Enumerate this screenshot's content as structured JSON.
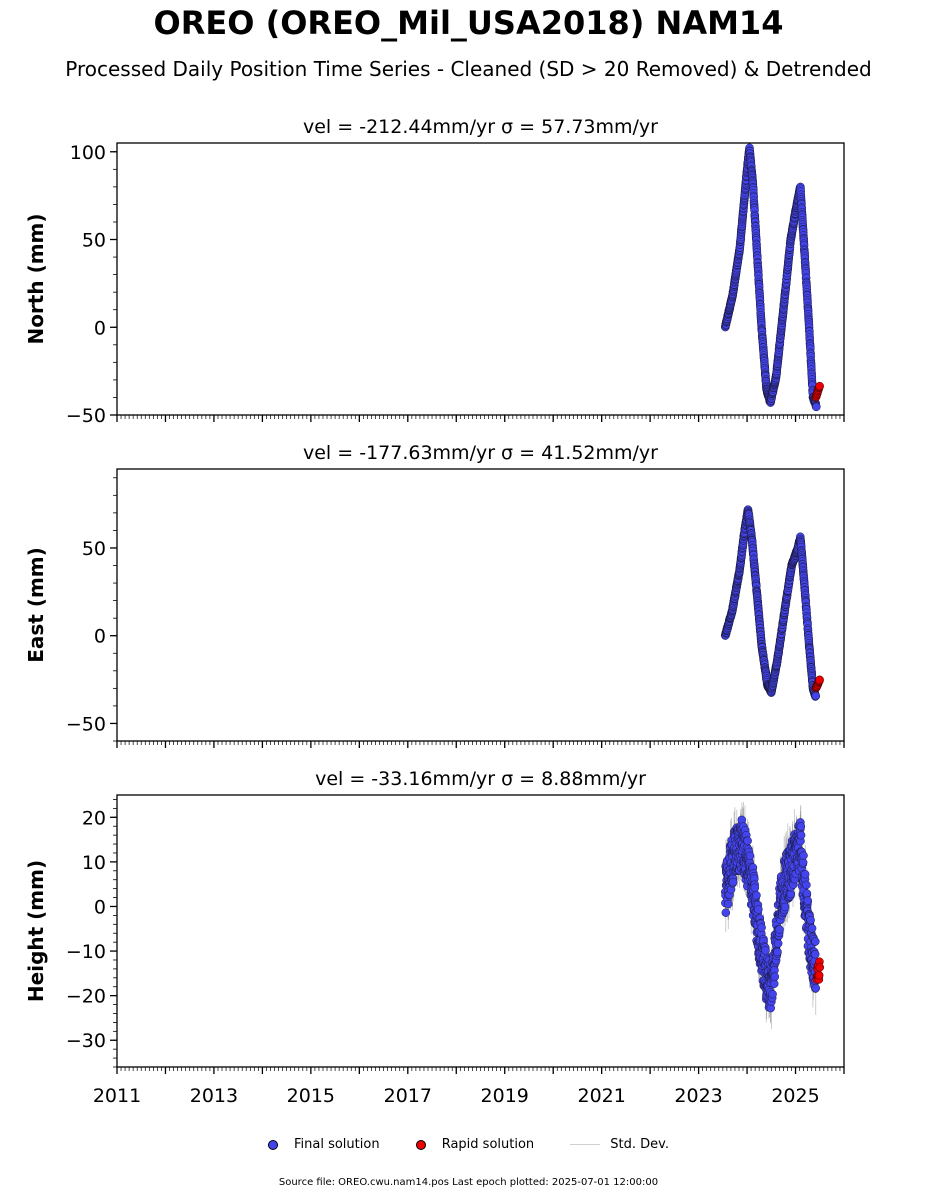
{
  "title": "OREO (OREO_Mil_USA2018) NAM14",
  "subtitle": "Processed Daily Position Time Series - Cleaned (SD > 20 Removed) & Detrended",
  "colors": {
    "final": "#4444ee",
    "rapid": "#ee0000",
    "stddev": "#808080"
  },
  "legend": {
    "final": "Final solution",
    "rapid": "Rapid solution",
    "stddev": "Std. Dev."
  },
  "footer": "Source file: OREO.cwu.nam14.pos  Last epoch plotted: 2025-07-01 12:00:00",
  "chart_data": [
    {
      "type": "scatter",
      "panel_title": "vel = -212.44mm/yr   σ = 57.73mm/yr",
      "ylabel": "North (mm)",
      "xlim": [
        2011,
        2026
      ],
      "ylim": [
        -50,
        105
      ],
      "yticks": [
        -50,
        0,
        50,
        100
      ],
      "xticks": [],
      "final_trace": [
        [
          2023.55,
          0
        ],
        [
          2023.7,
          18
        ],
        [
          2023.85,
          45
        ],
        [
          2024.0,
          90
        ],
        [
          2024.05,
          102
        ],
        [
          2024.12,
          82
        ],
        [
          2024.2,
          45
        ],
        [
          2024.3,
          0
        ],
        [
          2024.4,
          -35
        ],
        [
          2024.48,
          -43
        ],
        [
          2024.6,
          -28
        ],
        [
          2024.75,
          10
        ],
        [
          2024.9,
          50
        ],
        [
          2025.0,
          66
        ],
        [
          2025.1,
          80
        ],
        [
          2025.18,
          45
        ],
        [
          2025.28,
          0
        ],
        [
          2025.36,
          -40
        ],
        [
          2025.43,
          -45
        ]
      ],
      "rapid_trace": [
        [
          2025.42,
          -40
        ],
        [
          2025.5,
          -33
        ]
      ],
      "stddev": 0.4
    },
    {
      "type": "scatter",
      "panel_title": "vel = -177.63mm/yr   σ = 41.52mm/yr",
      "ylabel": "East (mm)",
      "xlim": [
        2011,
        2026
      ],
      "ylim": [
        -60,
        95
      ],
      "yticks": [
        -50,
        0,
        50
      ],
      "xticks": [],
      "final_trace": [
        [
          2023.55,
          0
        ],
        [
          2023.7,
          15
        ],
        [
          2023.85,
          38
        ],
        [
          2023.95,
          60
        ],
        [
          2024.02,
          72
        ],
        [
          2024.1,
          55
        ],
        [
          2024.2,
          25
        ],
        [
          2024.3,
          -5
        ],
        [
          2024.42,
          -28
        ],
        [
          2024.5,
          -32
        ],
        [
          2024.62,
          -15
        ],
        [
          2024.78,
          15
        ],
        [
          2024.92,
          40
        ],
        [
          2025.05,
          50
        ],
        [
          2025.1,
          56
        ],
        [
          2025.18,
          30
        ],
        [
          2025.28,
          -5
        ],
        [
          2025.36,
          -30
        ],
        [
          2025.42,
          -35
        ]
      ],
      "rapid_trace": [
        [
          2025.42,
          -30
        ],
        [
          2025.5,
          -25
        ]
      ],
      "stddev": 0.4
    },
    {
      "type": "scatter",
      "panel_title": "vel = -33.16mm/yr   σ = 8.88mm/yr",
      "ylabel": "Height (mm)",
      "xlim": [
        2011,
        2026
      ],
      "ylim": [
        -36,
        25
      ],
      "yticks": [
        -30,
        -20,
        -10,
        0,
        10,
        20
      ],
      "xticks": [
        2011,
        2013,
        2015,
        2017,
        2019,
        2021,
        2023,
        2025
      ],
      "final_trace": [
        [
          2023.55,
          3
        ],
        [
          2023.65,
          8
        ],
        [
          2023.75,
          12
        ],
        [
          2023.9,
          14
        ],
        [
          2024.0,
          10
        ],
        [
          2024.1,
          5
        ],
        [
          2024.2,
          -3
        ],
        [
          2024.3,
          -10
        ],
        [
          2024.4,
          -16
        ],
        [
          2024.5,
          -18
        ],
        [
          2024.6,
          -8
        ],
        [
          2024.7,
          2
        ],
        [
          2024.8,
          6
        ],
        [
          2024.9,
          8
        ],
        [
          2025.0,
          12
        ],
        [
          2025.1,
          14
        ],
        [
          2025.2,
          2
        ],
        [
          2025.3,
          -8
        ],
        [
          2025.42,
          -14
        ]
      ],
      "rapid_trace": [
        [
          2025.44,
          -14
        ],
        [
          2025.5,
          -15
        ]
      ],
      "stddev": 3.5
    }
  ]
}
